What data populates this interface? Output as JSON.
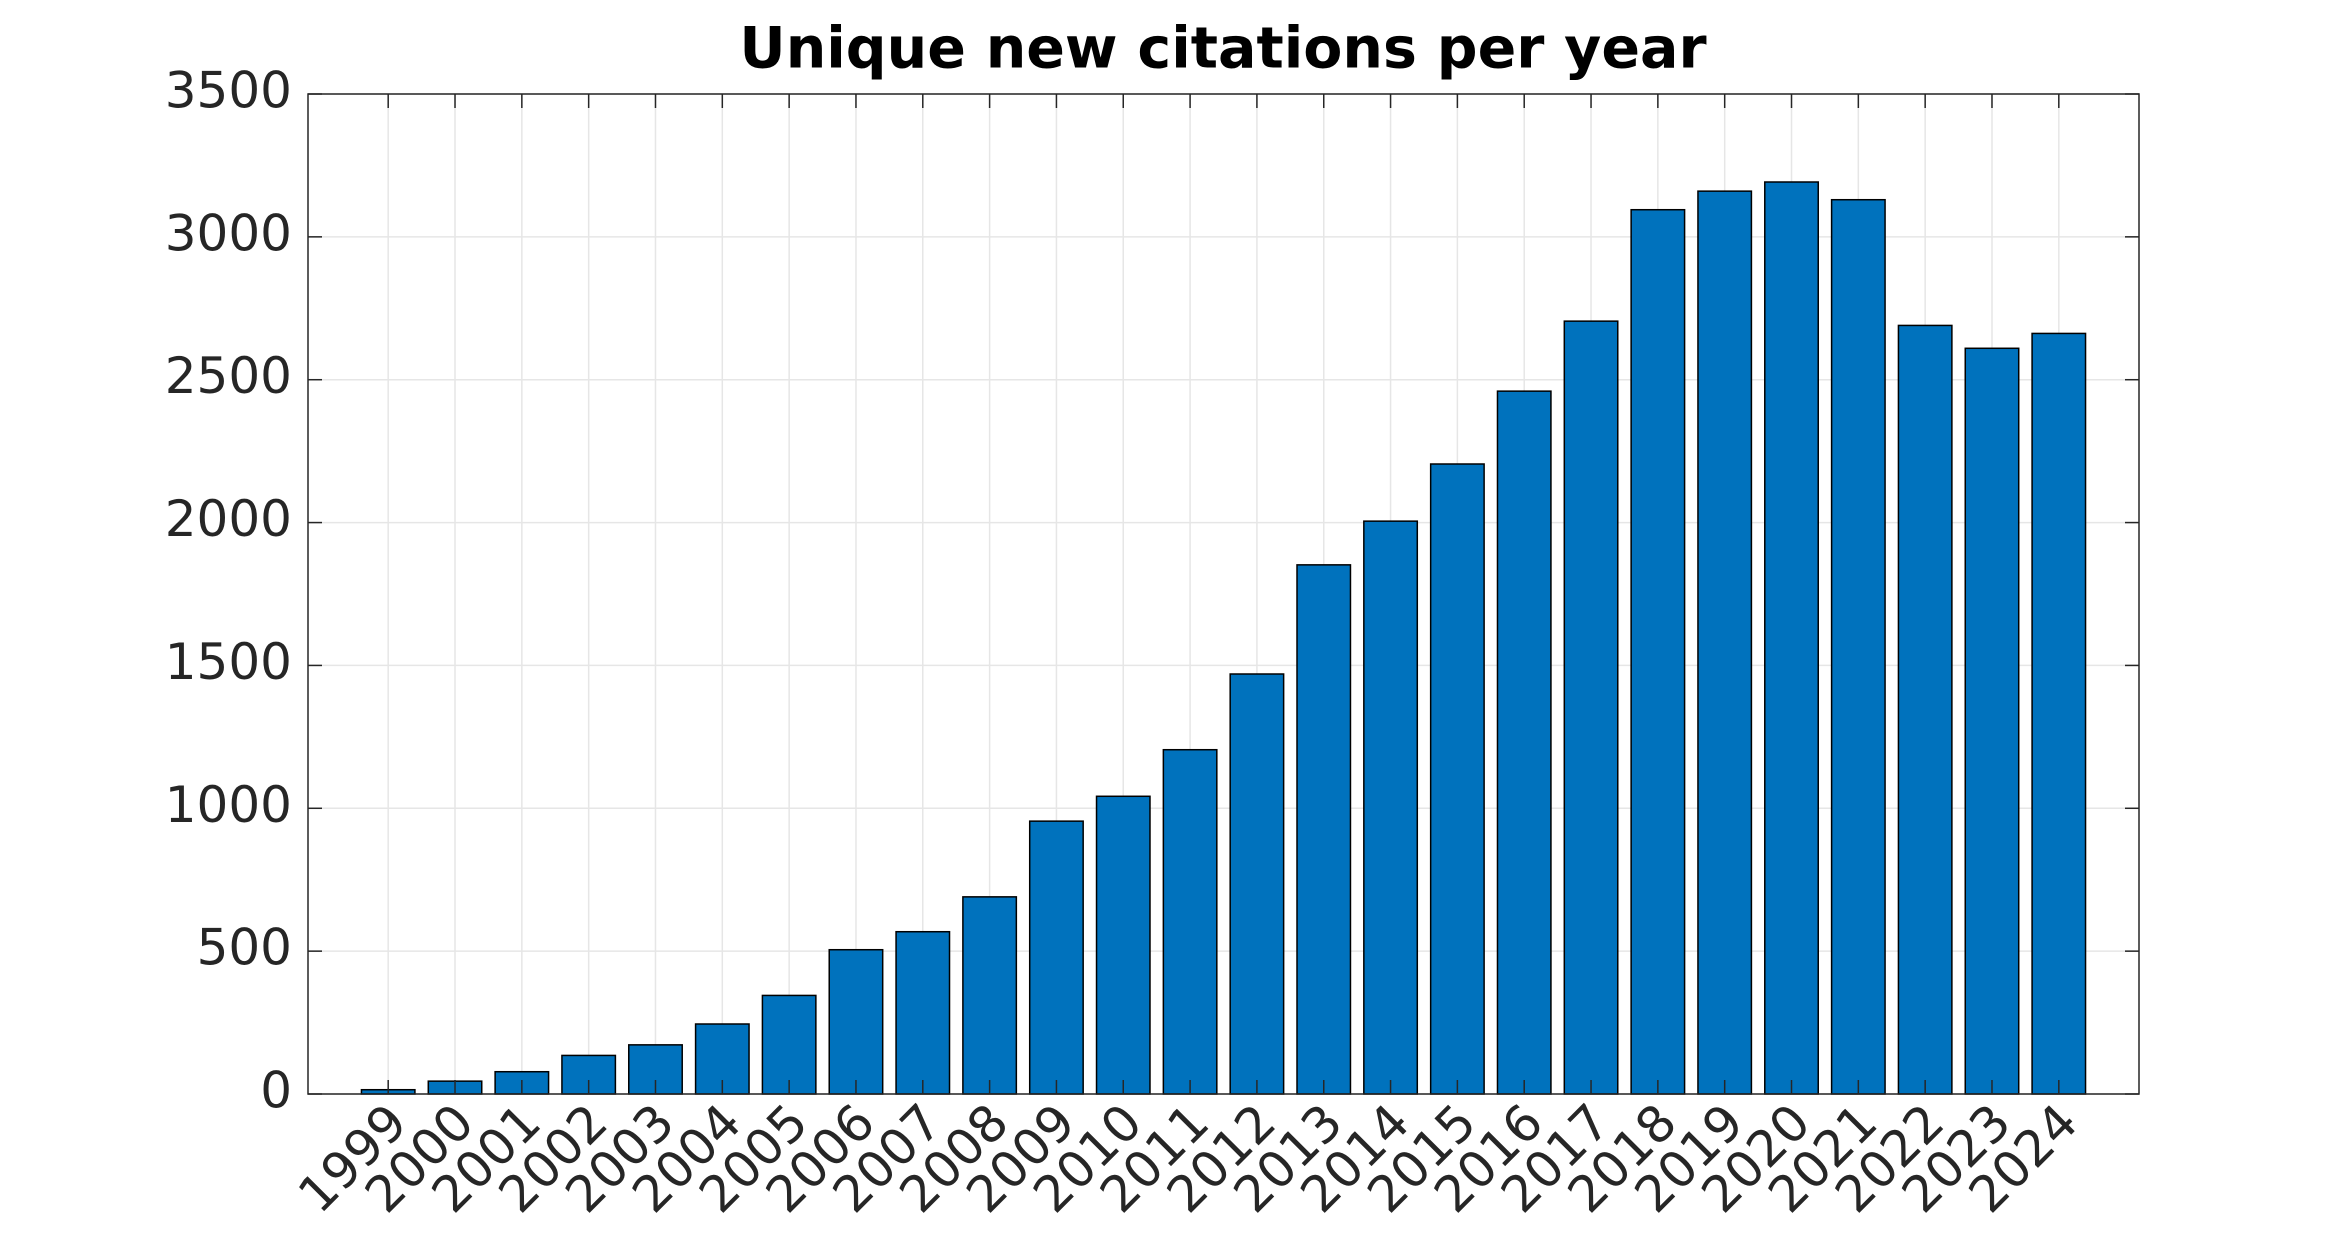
{
  "chart_data": {
    "type": "bar",
    "title": "Unique new citations per year",
    "categories": [
      "1999",
      "2000",
      "2001",
      "2002",
      "2003",
      "2004",
      "2005",
      "2006",
      "2007",
      "2008",
      "2009",
      "2010",
      "2011",
      "2012",
      "2013",
      "2014",
      "2015",
      "2016",
      "2017",
      "2018",
      "2019",
      "2020",
      "2021",
      "2022",
      "2023",
      "2024"
    ],
    "values": [
      15,
      45,
      78,
      135,
      172,
      245,
      345,
      505,
      568,
      690,
      955,
      1042,
      1205,
      1470,
      1852,
      2005,
      2205,
      2460,
      2705,
      3095,
      3160,
      3192,
      3130,
      2690,
      2610,
      2662
    ],
    "color": "#0072bd",
    "ylim": [
      0,
      3500
    ],
    "yticks": [
      0,
      500,
      1000,
      1500,
      2000,
      2500,
      3000,
      3500
    ],
    "grid": true
  }
}
